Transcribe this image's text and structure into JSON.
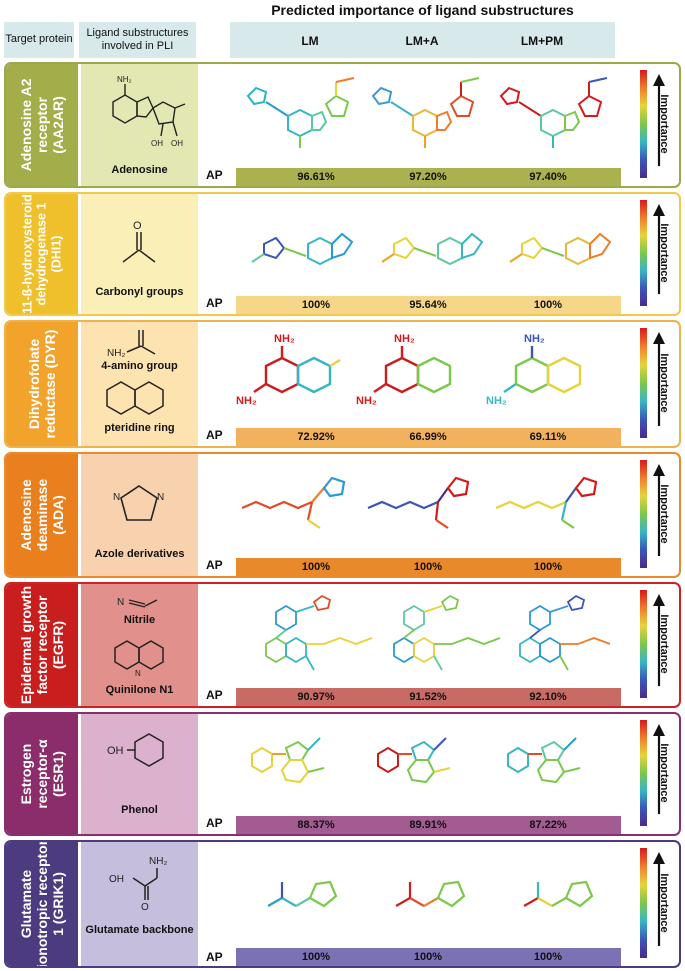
{
  "header": {
    "title": "Predicted importance of ligand substructures",
    "target_label": "Target protein",
    "sub_label": "Ligand substructures involved in PLI",
    "cols": [
      "LM",
      "LM+A",
      "LM+PM"
    ]
  },
  "legend": {
    "label": "Importance"
  },
  "ap_label": "AP",
  "panels": [
    {
      "protein": "Adenosine A2 receptor (AA2AR)",
      "lines": [
        "Adenosine A2",
        "receptor",
        "(AA2AR)"
      ],
      "subs": [
        "Adenosine"
      ],
      "ap": [
        "96.61%",
        "97.20%",
        "97.40%"
      ],
      "border": "#9aa94a",
      "dark": "#a3ad49",
      "light": "#e3e8b3",
      "bar": "#aab14e"
    },
    {
      "protein": "11-ß-hydroxysteroid dehydrogenase 1 (DHI1)",
      "lines": [
        "11-ß-hydroxysteroid",
        "dehydrogenase 1",
        "(DHI1)"
      ],
      "subs": [
        "Carbonyl groups"
      ],
      "ap": [
        "100%",
        "95.64%",
        "100%"
      ],
      "border": "#f2c94c",
      "dark": "#f0bf2c",
      "light": "#fbefb8",
      "bar": "#f6d78a"
    },
    {
      "protein": "Dihydrofolate reductase (DYR)",
      "lines": [
        "Dihydrofolate",
        "reductase (DYR)"
      ],
      "subs": [
        "4-amino group",
        "pteridine ring"
      ],
      "ap": [
        "72.92%",
        "66.99%",
        "69.11%"
      ],
      "border": "#f0b34a",
      "dark": "#f2a32c",
      "light": "#fde3b0",
      "bar": "#f2b15d"
    },
    {
      "protein": "Adenosine deaminase (ADA)",
      "lines": [
        "Adenosine",
        "deaminase",
        "(ADA)"
      ],
      "subs": [
        "Azole derivatives"
      ],
      "ap": [
        "100%",
        "100%",
        "100%"
      ],
      "border": "#e98a2c",
      "dark": "#ea7f1e",
      "light": "#f8d2ae",
      "bar": "#e8892b"
    },
    {
      "protein": "Epidermal growth factor receptor (EGFR)",
      "lines": [
        "Epidermal growth",
        "factor receptor",
        "(EGFR)"
      ],
      "subs": [
        "Nitrile",
        "Quinilone N1"
      ],
      "ap": [
        "90.97%",
        "91.52%",
        "92.10%"
      ],
      "border": "#cc2222",
      "dark": "#c81e1e",
      "light": "#e1908c",
      "bar": "#c96b65"
    },
    {
      "protein": "Estrogen receptor-α (ESR1)",
      "lines": [
        "Estrogen",
        "receptor-α",
        "(ESR1)"
      ],
      "subs": [
        "Phenol"
      ],
      "ap": [
        "88.37%",
        "89.91%",
        "87.22%"
      ],
      "border": "#8a2f6e",
      "dark": "#8a2d6a",
      "light": "#dbb1cd",
      "bar": "#a35c92"
    },
    {
      "protein": "Glutamate ionotropic receptor 1 (GRIK1)",
      "lines": [
        "Glutamate",
        "ionotropic receptor",
        "1 (GRIK1)"
      ],
      "subs": [
        "Glutamate backbone"
      ],
      "ap": [
        "100%",
        "100%",
        "100%"
      ],
      "border": "#4d3b82",
      "dark": "#4d3b80",
      "light": "#c6bedd",
      "bar": "#7b72b4"
    }
  ]
}
